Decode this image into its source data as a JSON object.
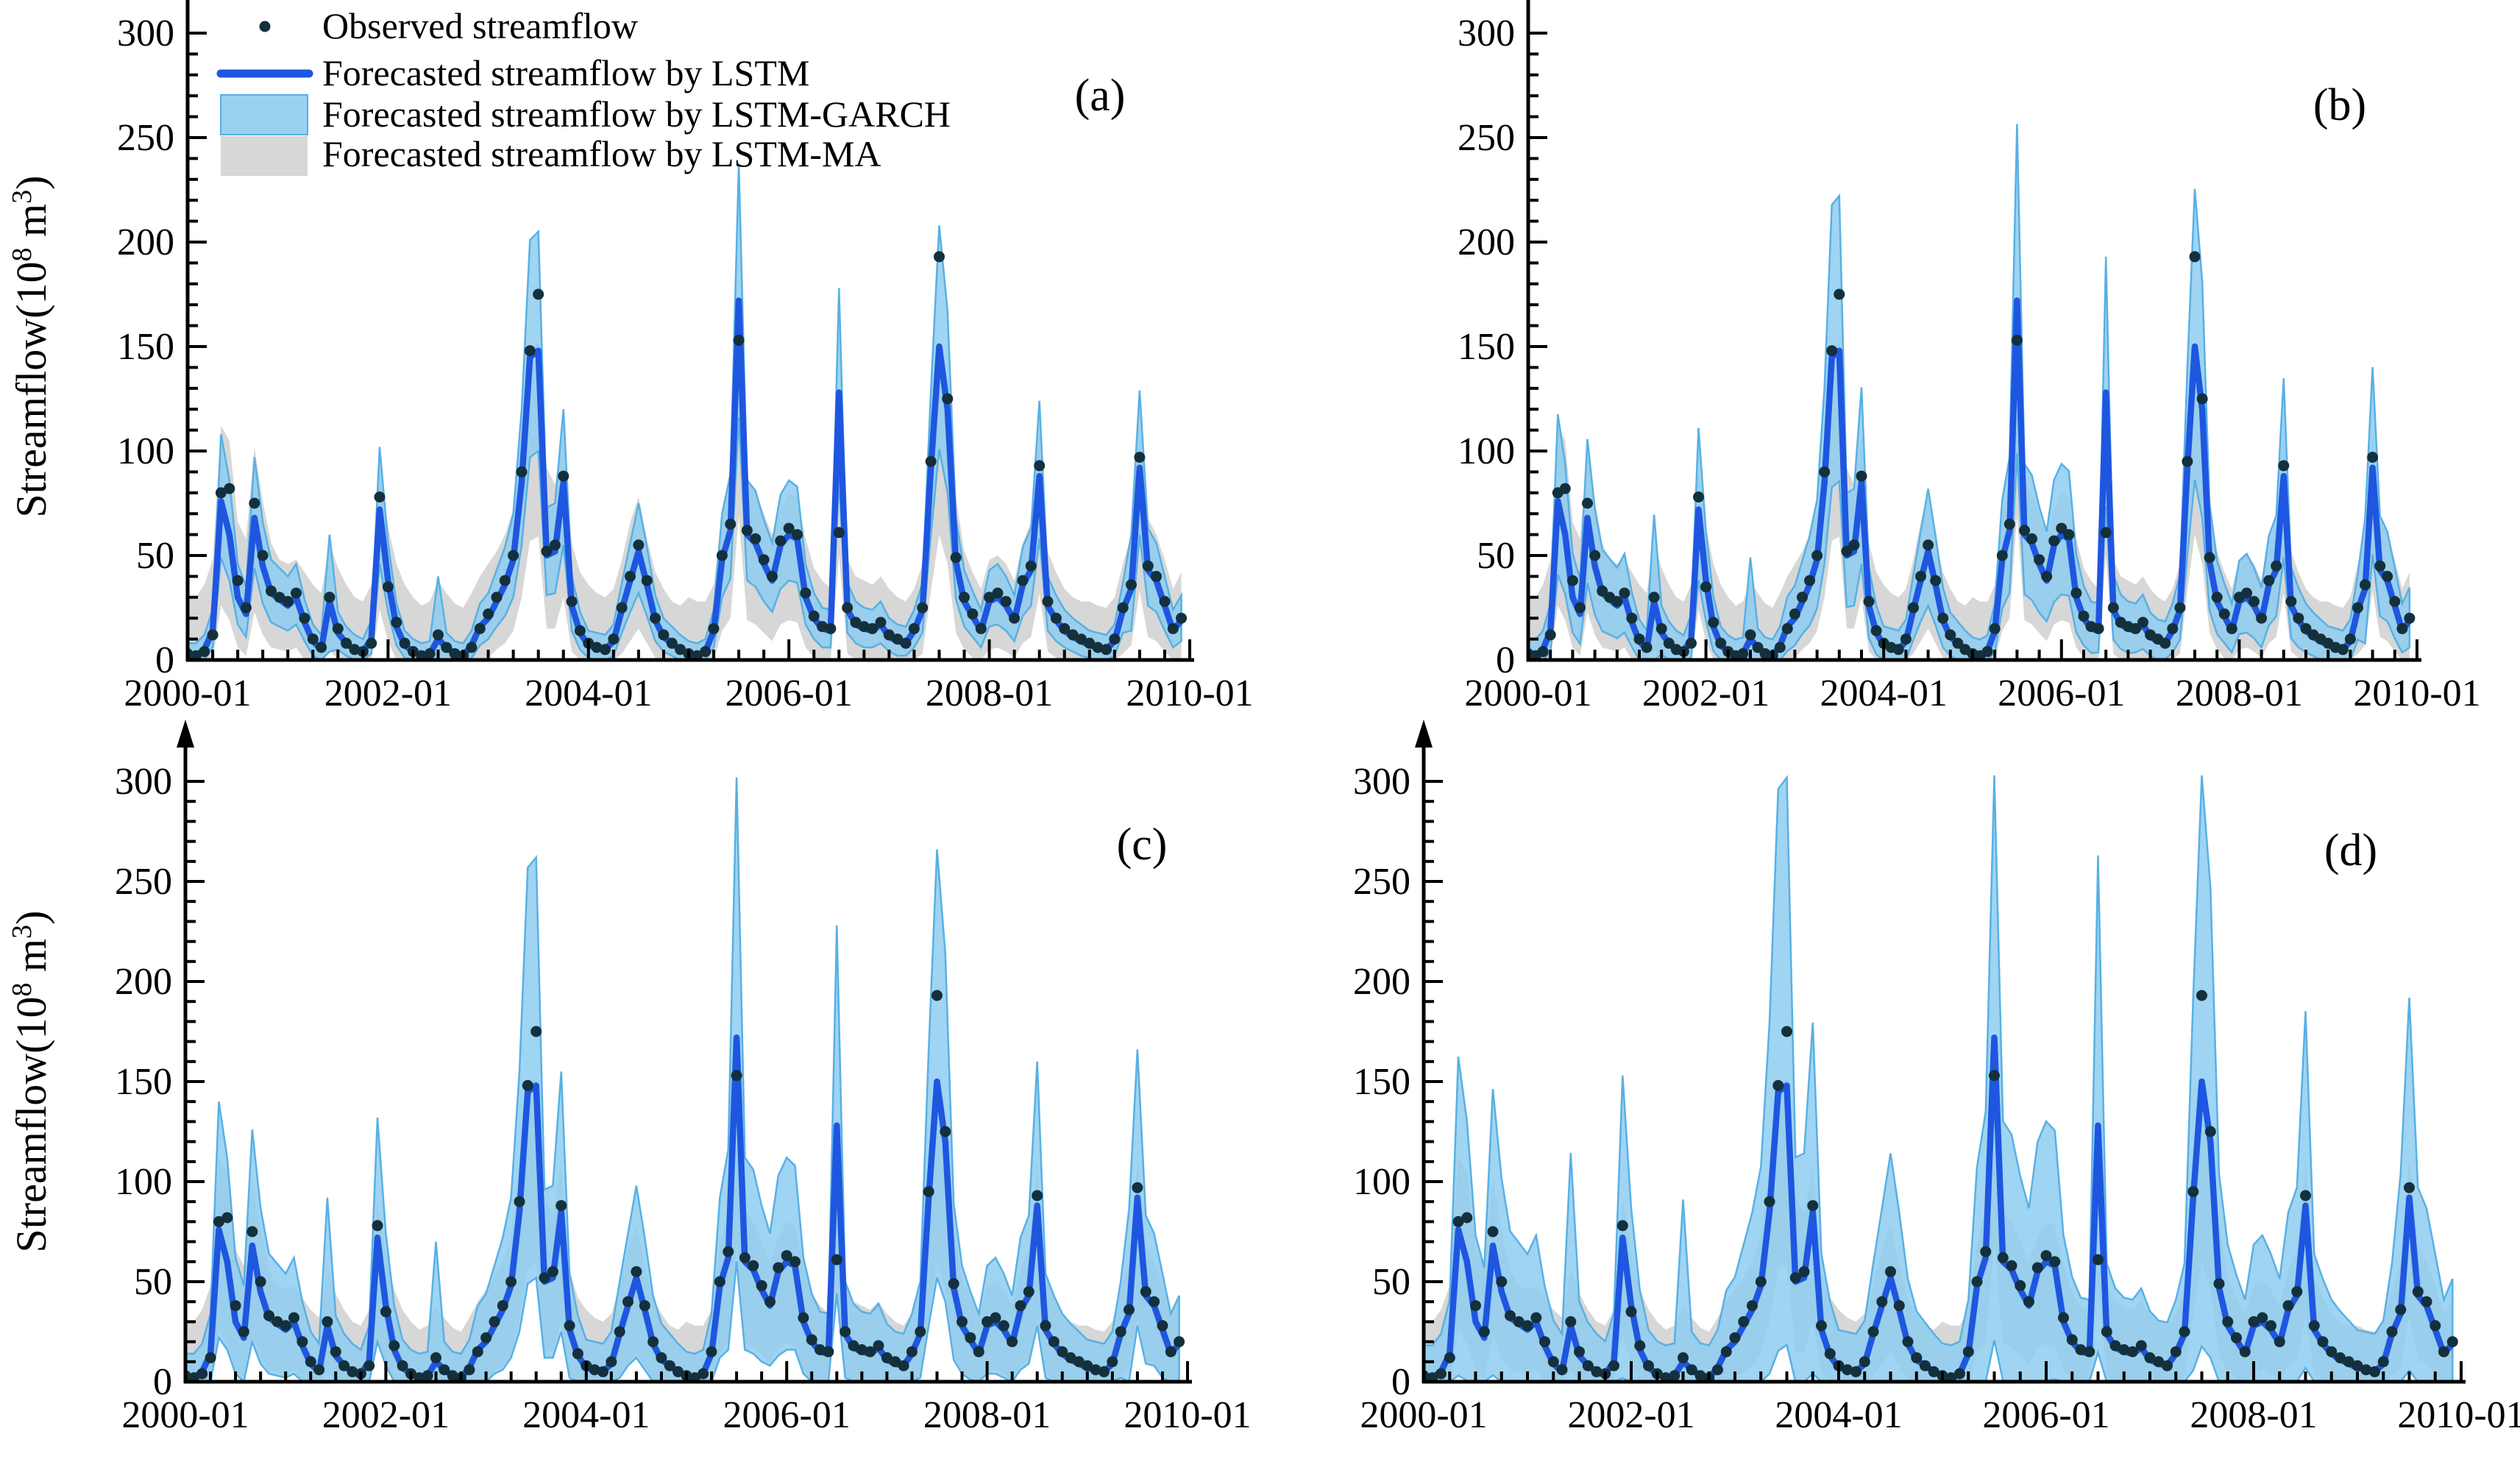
{
  "figure": {
    "background": "#ffffff",
    "legend": {
      "items": [
        {
          "key": "observed",
          "label": "Observed streamflow",
          "marker": "dot"
        },
        {
          "key": "lstm",
          "label": "Forecasted streamflow by LSTM",
          "marker": "line"
        },
        {
          "key": "garch",
          "label": "Forecasted streamflow by LSTM-GARCH",
          "marker": "band-blue"
        },
        {
          "key": "ma",
          "label": "Forecasted streamflow by LSTM-MA",
          "marker": "band-gray"
        }
      ]
    }
  },
  "chart_data": {
    "type": "line",
    "title": "",
    "xlabel": "",
    "ylabel_parts": {
      "base1": "Streamflow(10",
      "sup1": "8",
      "base2": " m",
      "sup2": "3",
      "base3": ")"
    },
    "ylim": [
      0,
      300
    ],
    "y_ticks": [
      0,
      50,
      100,
      150,
      200,
      250,
      300
    ],
    "y_minor_step": 10,
    "x_start": "2000-01",
    "x_end": "2009-12",
    "frequency": "monthly",
    "n_points": 120,
    "x_tick_labels": [
      "2000-01",
      "2002-01",
      "2004-01",
      "2006-01",
      "2008-01",
      "2010-01"
    ],
    "x_minor_months": 3,
    "grid": false,
    "legend_position": "top-left of panel (a)",
    "panels": [
      {
        "id": "a",
        "label": "(a)",
        "garch_scale": 1.0,
        "show_legend": true,
        "show_ylabel": true
      },
      {
        "id": "b",
        "label": "(b)",
        "garch_scale": 1.3,
        "show_legend": false,
        "show_ylabel": false
      },
      {
        "id": "c",
        "label": "(c)",
        "garch_scale": 2.0,
        "show_legend": false,
        "show_ylabel": true
      },
      {
        "id": "d",
        "label": "(d)",
        "garch_scale": 2.7,
        "show_legend": false,
        "show_ylabel": false
      }
    ],
    "series": {
      "observed": [
        3,
        2,
        4,
        12,
        80,
        82,
        38,
        25,
        75,
        50,
        33,
        30,
        28,
        32,
        20,
        10,
        6,
        30,
        15,
        8,
        5,
        4,
        8,
        78,
        35,
        18,
        8,
        4,
        2,
        3,
        12,
        6,
        3,
        2,
        6,
        15,
        22,
        30,
        38,
        50,
        90,
        148,
        175,
        52,
        55,
        88,
        28,
        14,
        8,
        6,
        5,
        10,
        25,
        40,
        55,
        38,
        20,
        12,
        8,
        5,
        3,
        2,
        4,
        15,
        50,
        65,
        153,
        62,
        58,
        48,
        40,
        57,
        63,
        60,
        32,
        21,
        16,
        15,
        61,
        25,
        18,
        16,
        15,
        18,
        12,
        10,
        8,
        15,
        25,
        95,
        193,
        125,
        49,
        30,
        22,
        15,
        30,
        32,
        28,
        20,
        38,
        45,
        93,
        28,
        20,
        15,
        12,
        10,
        8,
        6,
        5,
        10,
        25,
        36,
        97,
        45,
        40,
        28,
        15,
        20
      ],
      "lstm": [
        2,
        2,
        5,
        14,
        76,
        60,
        30,
        22,
        68,
        45,
        32,
        29,
        26,
        30,
        18,
        9,
        5,
        28,
        13,
        8,
        5,
        4,
        10,
        72,
        38,
        16,
        7,
        4,
        2,
        3,
        10,
        6,
        3,
        2,
        7,
        16,
        20,
        28,
        36,
        48,
        85,
        145,
        148,
        50,
        52,
        85,
        26,
        13,
        7,
        6,
        5,
        9,
        24,
        38,
        52,
        36,
        19,
        11,
        8,
        5,
        3,
        2,
        4,
        14,
        48,
        62,
        172,
        60,
        56,
        46,
        38,
        55,
        60,
        58,
        30,
        20,
        15,
        14,
        128,
        24,
        17,
        15,
        14,
        17,
        11,
        9,
        8,
        14,
        24,
        92,
        150,
        120,
        47,
        28,
        21,
        14,
        28,
        30,
        26,
        19,
        36,
        43,
        88,
        26,
        19,
        14,
        11,
        9,
        7,
        6,
        5,
        9,
        24,
        34,
        92,
        43,
        38,
        26,
        14,
        19
      ],
      "garch_half_up": [
        6,
        6,
        7,
        10,
        32,
        26,
        16,
        13,
        29,
        21,
        16,
        15,
        14,
        16,
        11,
        8,
        7,
        32,
        10,
        8,
        7,
        6,
        9,
        30,
        18,
        11,
        7,
        6,
        6,
        6,
        30,
        7,
        6,
        6,
        7,
        11,
        12,
        15,
        18,
        22,
        35,
        56,
        57,
        23,
        23,
        35,
        14,
        10,
        7,
        7,
        7,
        8,
        13,
        18,
        23,
        18,
        12,
        9,
        8,
        7,
        6,
        6,
        6,
        10,
        22,
        27,
        65,
        26,
        25,
        21,
        18,
        24,
        26,
        25,
        16,
        12,
        10,
        10,
        50,
        13,
        11,
        10,
        10,
        11,
        9,
        8,
        8,
        10,
        13,
        37,
        58,
        47,
        21,
        15,
        12,
        10,
        15,
        16,
        14,
        12,
        18,
        20,
        36,
        14,
        12,
        10,
        9,
        8,
        7,
        7,
        7,
        8,
        13,
        26,
        37,
        20,
        18,
        14,
        10,
        12
      ],
      "garch_half_dn": [
        5,
        5,
        6,
        8,
        27,
        22,
        13,
        11,
        24,
        18,
        14,
        13,
        12,
        13,
        9,
        7,
        6,
        24,
        8,
        6,
        6,
        5,
        7,
        26,
        15,
        9,
        6,
        5,
        5,
        5,
        20,
        6,
        5,
        5,
        6,
        9,
        10,
        12,
        15,
        18,
        30,
        48,
        48,
        19,
        20,
        30,
        12,
        8,
        6,
        6,
        6,
        7,
        11,
        15,
        20,
        15,
        10,
        7,
        6,
        6,
        5,
        5,
        5,
        8,
        18,
        23,
        56,
        22,
        21,
        18,
        15,
        21,
        22,
        21,
        13,
        10,
        9,
        8,
        42,
        11,
        9,
        9,
        8,
        9,
        7,
        7,
        6,
        8,
        11,
        32,
        49,
        40,
        18,
        12,
        10,
        8,
        12,
        13,
        12,
        10,
        15,
        17,
        30,
        12,
        10,
        8,
        7,
        7,
        6,
        6,
        6,
        7,
        11,
        20,
        32,
        17,
        15,
        12,
        8,
        10
      ],
      "ma_upper": [
        30,
        30,
        36,
        48,
        112,
        105,
        66,
        58,
        102,
        76,
        56,
        48,
        46,
        48,
        42,
        36,
        32,
        56,
        44,
        36,
        30,
        28,
        36,
        92,
        64,
        46,
        36,
        30,
        26,
        28,
        38,
        32,
        27,
        25,
        32,
        40,
        46,
        52,
        60,
        72,
        108,
        148,
        152,
        92,
        84,
        108,
        56,
        42,
        36,
        32,
        30,
        34,
        48,
        66,
        78,
        58,
        42,
        34,
        28,
        26,
        30,
        28,
        28,
        36,
        68,
        86,
        132,
        86,
        80,
        70,
        60,
        72,
        80,
        78,
        58,
        44,
        38,
        34,
        118,
        48,
        40,
        38,
        36,
        40,
        34,
        30,
        28,
        34,
        46,
        112,
        152,
        132,
        78,
        52,
        42,
        34,
        48,
        50,
        46,
        38,
        56,
        66,
        110,
        52,
        42,
        34,
        30,
        28,
        28,
        26,
        25,
        30,
        46,
        60,
        112,
        68,
        60,
        48,
        34,
        42
      ],
      "ma_lower": [
        0,
        0,
        0,
        0,
        26,
        19,
        6,
        2,
        23,
        12,
        6,
        5,
        4,
        6,
        0,
        0,
        0,
        5,
        0,
        0,
        0,
        0,
        0,
        24,
        9,
        0,
        0,
        0,
        0,
        0,
        0,
        0,
        0,
        0,
        0,
        0,
        1,
        5,
        8,
        14,
        30,
        57,
        59,
        15,
        15,
        30,
        4,
        0,
        0,
        0,
        0,
        0,
        3,
        9,
        15,
        8,
        1,
        0,
        0,
        0,
        0,
        0,
        0,
        0,
        14,
        20,
        69,
        19,
        17,
        13,
        9,
        17,
        19,
        18,
        6,
        1,
        0,
        0,
        50,
        3,
        0,
        0,
        0,
        0,
        0,
        0,
        0,
        0,
        3,
        33,
        60,
        46,
        13,
        5,
        1,
        0,
        5,
        6,
        4,
        1,
        8,
        11,
        32,
        4,
        1,
        0,
        0,
        0,
        0,
        0,
        0,
        0,
        3,
        7,
        33,
        11,
        9,
        4,
        0,
        1
      ]
    },
    "colors": {
      "observed_dot": "#14303c",
      "lstm_line": "#1e56e0",
      "garch_fill": "#8ecdf0",
      "garch_edge": "#58b0e4",
      "ma_fill": "#d7d7d7",
      "axis": "#000000"
    }
  }
}
